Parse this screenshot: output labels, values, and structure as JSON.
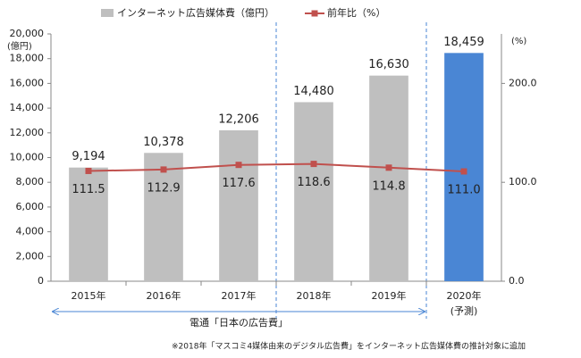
{
  "chart_data": {
    "type": "bar-line",
    "categories": [
      "2015年",
      "2016年",
      "2017年",
      "2018年",
      "2019年",
      "2020年"
    ],
    "series": [
      {
        "name": "インターネット広告媒体費（億円）",
        "type": "bar",
        "color": "#bfbfbf",
        "colors": [
          "#bfbfbf",
          "#bfbfbf",
          "#bfbfbf",
          "#bfbfbf",
          "#bfbfbf",
          "#4a86d4"
        ],
        "values": [
          9194,
          10378,
          12206,
          14480,
          16630,
          18459
        ],
        "value_labels": [
          "9,194",
          "10,378",
          "12,206",
          "14,480",
          "16,630",
          "18,459"
        ]
      },
      {
        "name": "前年比（%）",
        "type": "line",
        "axis": "y2",
        "color": "#c0504d",
        "values": [
          111.5,
          112.9,
          117.6,
          118.6,
          114.8,
          111.0
        ],
        "value_labels": [
          "111.5",
          "112.9",
          "117.6",
          "118.6",
          "114.8",
          "111.0"
        ]
      }
    ],
    "ylim": [
      0,
      20000
    ],
    "yticks": [
      0,
      {
        "value": 2000,
        "label": "2,000"
      },
      {
        "value": 4000,
        "label": "4,000"
      },
      {
        "value": 6000,
        "label": "6,000"
      },
      {
        "value": 8000,
        "label": "8,000"
      },
      {
        "value": 10000,
        "label": "10,000"
      },
      {
        "value": 12000,
        "label": "12,000"
      },
      {
        "value": 14000,
        "label": "14,000"
      },
      {
        "value": 16000,
        "label": "16,000"
      },
      {
        "value": 18000,
        "label": "18,000"
      },
      {
        "value": 20000,
        "label": "20,000"
      }
    ],
    "y_unit": "(億円)",
    "y2lim": [
      0,
      250
    ],
    "y2ticks": [
      {
        "value": 0,
        "label": "0.0"
      },
      {
        "value": 100,
        "label": "100.0"
      },
      {
        "value": 200,
        "label": "200.0"
      }
    ],
    "y2_unit": "(%)",
    "forecast_note": "(予測)",
    "source": "電通「日本の広告費」",
    "footnote": "※2018年「マスコミ4媒体由来のデジタル広告費」をインターネット広告媒体費の推計対象に追加"
  }
}
